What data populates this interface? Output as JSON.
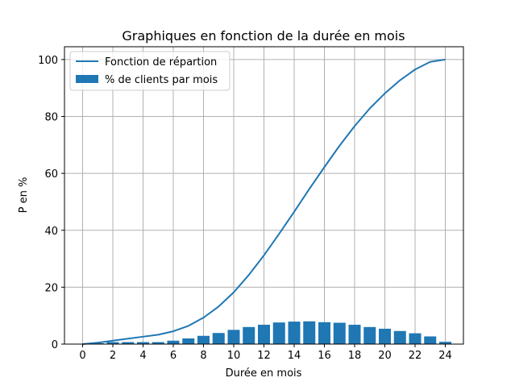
{
  "chart_data": {
    "type": "bar",
    "title": "Graphiques en fonction de la durée en mois",
    "xlabel": "Durée en mois",
    "ylabel": "P en %",
    "xlim": [
      -1.2,
      25.2
    ],
    "ylim": [
      0,
      104.5
    ],
    "xticks": [
      0,
      2,
      4,
      6,
      8,
      10,
      12,
      14,
      16,
      18,
      20,
      22,
      24
    ],
    "yticks": [
      0,
      20,
      40,
      60,
      80,
      100
    ],
    "grid": true,
    "legend_position": "top-left",
    "colors": {
      "series": "#1f77b4",
      "grid": "#b0b0b0"
    },
    "series": [
      {
        "name": "Fonction de répartion",
        "type": "line",
        "x": [
          0,
          1,
          2,
          3,
          4,
          5,
          6,
          7,
          8,
          9,
          10,
          11,
          12,
          13,
          14,
          15,
          16,
          17,
          18,
          19,
          20,
          21,
          22,
          23,
          24
        ],
        "values": [
          0,
          0.5,
          1.2,
          1.9,
          2.6,
          3.3,
          4.5,
          6.4,
          9.3,
          13.2,
          18.2,
          24.3,
          31.2,
          38.7,
          46.5,
          54.5,
          62.2,
          69.7,
          76.6,
          82.8,
          88.1,
          92.7,
          96.5,
          99.2,
          100
        ]
      },
      {
        "name": "% de clients par mois",
        "type": "bar",
        "x": [
          1,
          2,
          3,
          4,
          5,
          6,
          7,
          8,
          9,
          10,
          11,
          12,
          13,
          14,
          15,
          16,
          17,
          18,
          19,
          20,
          21,
          22,
          23,
          24
        ],
        "values": [
          0.3,
          0.7,
          0.7,
          0.7,
          0.7,
          1.2,
          2.0,
          2.9,
          3.9,
          5.0,
          6.0,
          6.8,
          7.6,
          7.9,
          8.0,
          7.7,
          7.5,
          6.8,
          6.0,
          5.4,
          4.6,
          3.8,
          2.7,
          0.8
        ]
      }
    ]
  }
}
